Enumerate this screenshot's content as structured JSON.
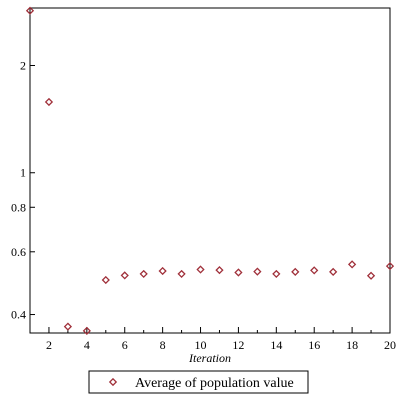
{
  "chart_data": {
    "type": "scatter",
    "title": "",
    "xlabel": "Iteration",
    "ylabel": "",
    "x_scale": "linear",
    "y_scale": "log",
    "xlim": [
      1,
      20
    ],
    "ylim": [
      0.355,
      2.9
    ],
    "x_ticks": [
      2,
      4,
      6,
      8,
      10,
      12,
      14,
      16,
      18,
      20
    ],
    "x_tick_labels": [
      "2",
      "4",
      "6",
      "8",
      "10",
      "12",
      "14",
      "16",
      "18",
      "20"
    ],
    "y_ticks": [
      0.4,
      0.6,
      0.8,
      1,
      2
    ],
    "y_tick_labels": [
      "0.4",
      "0.6",
      "0.8",
      "1",
      "2"
    ],
    "grid": false,
    "legend_position": "bottom",
    "series": [
      {
        "name": "Average of population value",
        "color": "#a0303a",
        "marker": "diamond-open",
        "x": [
          1,
          2,
          3,
          4,
          5,
          6,
          7,
          8,
          9,
          10,
          11,
          12,
          13,
          14,
          15,
          16,
          17,
          18,
          19,
          20
        ],
        "y": [
          2.85,
          1.58,
          0.37,
          0.36,
          0.5,
          0.515,
          0.52,
          0.53,
          0.52,
          0.535,
          0.533,
          0.525,
          0.528,
          0.52,
          0.527,
          0.532,
          0.527,
          0.553,
          0.514,
          0.547
        ]
      }
    ]
  }
}
